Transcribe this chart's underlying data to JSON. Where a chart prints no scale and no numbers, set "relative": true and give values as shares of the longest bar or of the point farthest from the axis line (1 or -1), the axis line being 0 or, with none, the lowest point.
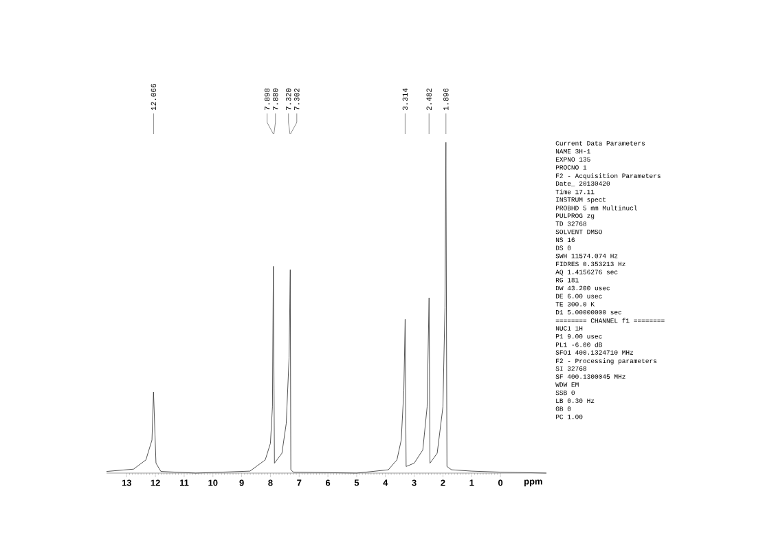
{
  "chart_data": {
    "type": "line",
    "relative": true,
    "xlabel": "ppm",
    "color": "#404040",
    "x": [
      13.7,
      12.76,
      12.33,
      12.12,
      12.066,
      11.98,
      11.81,
      10.6,
      8.71,
      8.18,
      8.0,
      7.93,
      7.898,
      7.86,
      7.6,
      7.45,
      7.35,
      7.31,
      7.29,
      7.2,
      5.0,
      3.9,
      3.6,
      3.45,
      3.36,
      3.314,
      3.28,
      3.0,
      2.7,
      2.55,
      2.482,
      2.45,
      2.2,
      2.0,
      1.93,
      1.896,
      1.86,
      1.7,
      1.0,
      0,
      -1.6
    ],
    "values": [
      0.005,
      0.012,
      0.04,
      0.1,
      0.245,
      0.03,
      0.005,
      0,
      0.006,
      0.04,
      0.09,
      0.2,
      0.625,
      0.03,
      0.06,
      0.15,
      0.35,
      0.615,
      0.01,
      0.003,
      0,
      0.01,
      0.04,
      0.1,
      0.25,
      0.465,
      0.02,
      0.03,
      0.07,
      0.2,
      0.53,
      0.03,
      0.06,
      0.2,
      0.5,
      1.0,
      0.02,
      0.01,
      0.006,
      0.003,
      0
    ],
    "xlim": [
      13.7,
      -1.6
    ],
    "xticks": [
      13,
      12,
      11,
      10,
      9,
      8,
      7,
      6,
      5,
      4,
      3,
      2,
      1,
      0
    ],
    "annotations": [
      {
        "text": "12.066",
        "x": 12.066
      },
      {
        "text": "7.898",
        "x": 7.898
      },
      {
        "text": "7.880",
        "x": 7.88
      },
      {
        "text": "7.320",
        "x": 7.32
      },
      {
        "text": "7.302",
        "x": 7.302
      },
      {
        "text": "3.314",
        "x": 3.314
      },
      {
        "text": "2.482",
        "x": 2.482
      },
      {
        "text": "1.896",
        "x": 1.896
      },
      "Current Data Parameters",
      "NAME 3H-1",
      "EXPNO 135",
      "PROCNO 1",
      "F2 - Acquisition Parameters",
      "Date_ 20130420",
      "Time 17.11",
      "INSTRUM spect",
      "PROBHD 5 mm Multinucl",
      "PULPROG zg",
      "TD 32768",
      "SOLVENT DMSO",
      "NS 16",
      "DS 0",
      "SWH 11574.074 Hz",
      "FIDRES 0.353213 Hz",
      "AQ 1.4156276 sec",
      "RG 181",
      "DW 43.200 usec",
      "DE 6.00 usec",
      "TE 300.0 K",
      "D1 5.00000000 sec",
      "======== CHANNEL f1 ========",
      "NUC1 1H",
      "P1 9.00 usec",
      "PL1 -6.00 dB",
      "SFO1 400.1324710 MHz",
      "F2 - Processing parameters",
      "SI 32768",
      "SF 400.1300045 MHz",
      "WDW EM",
      "SSB 0",
      "LB 0.30 Hz",
      "GB 0",
      "PC 1.00"
    ]
  }
}
